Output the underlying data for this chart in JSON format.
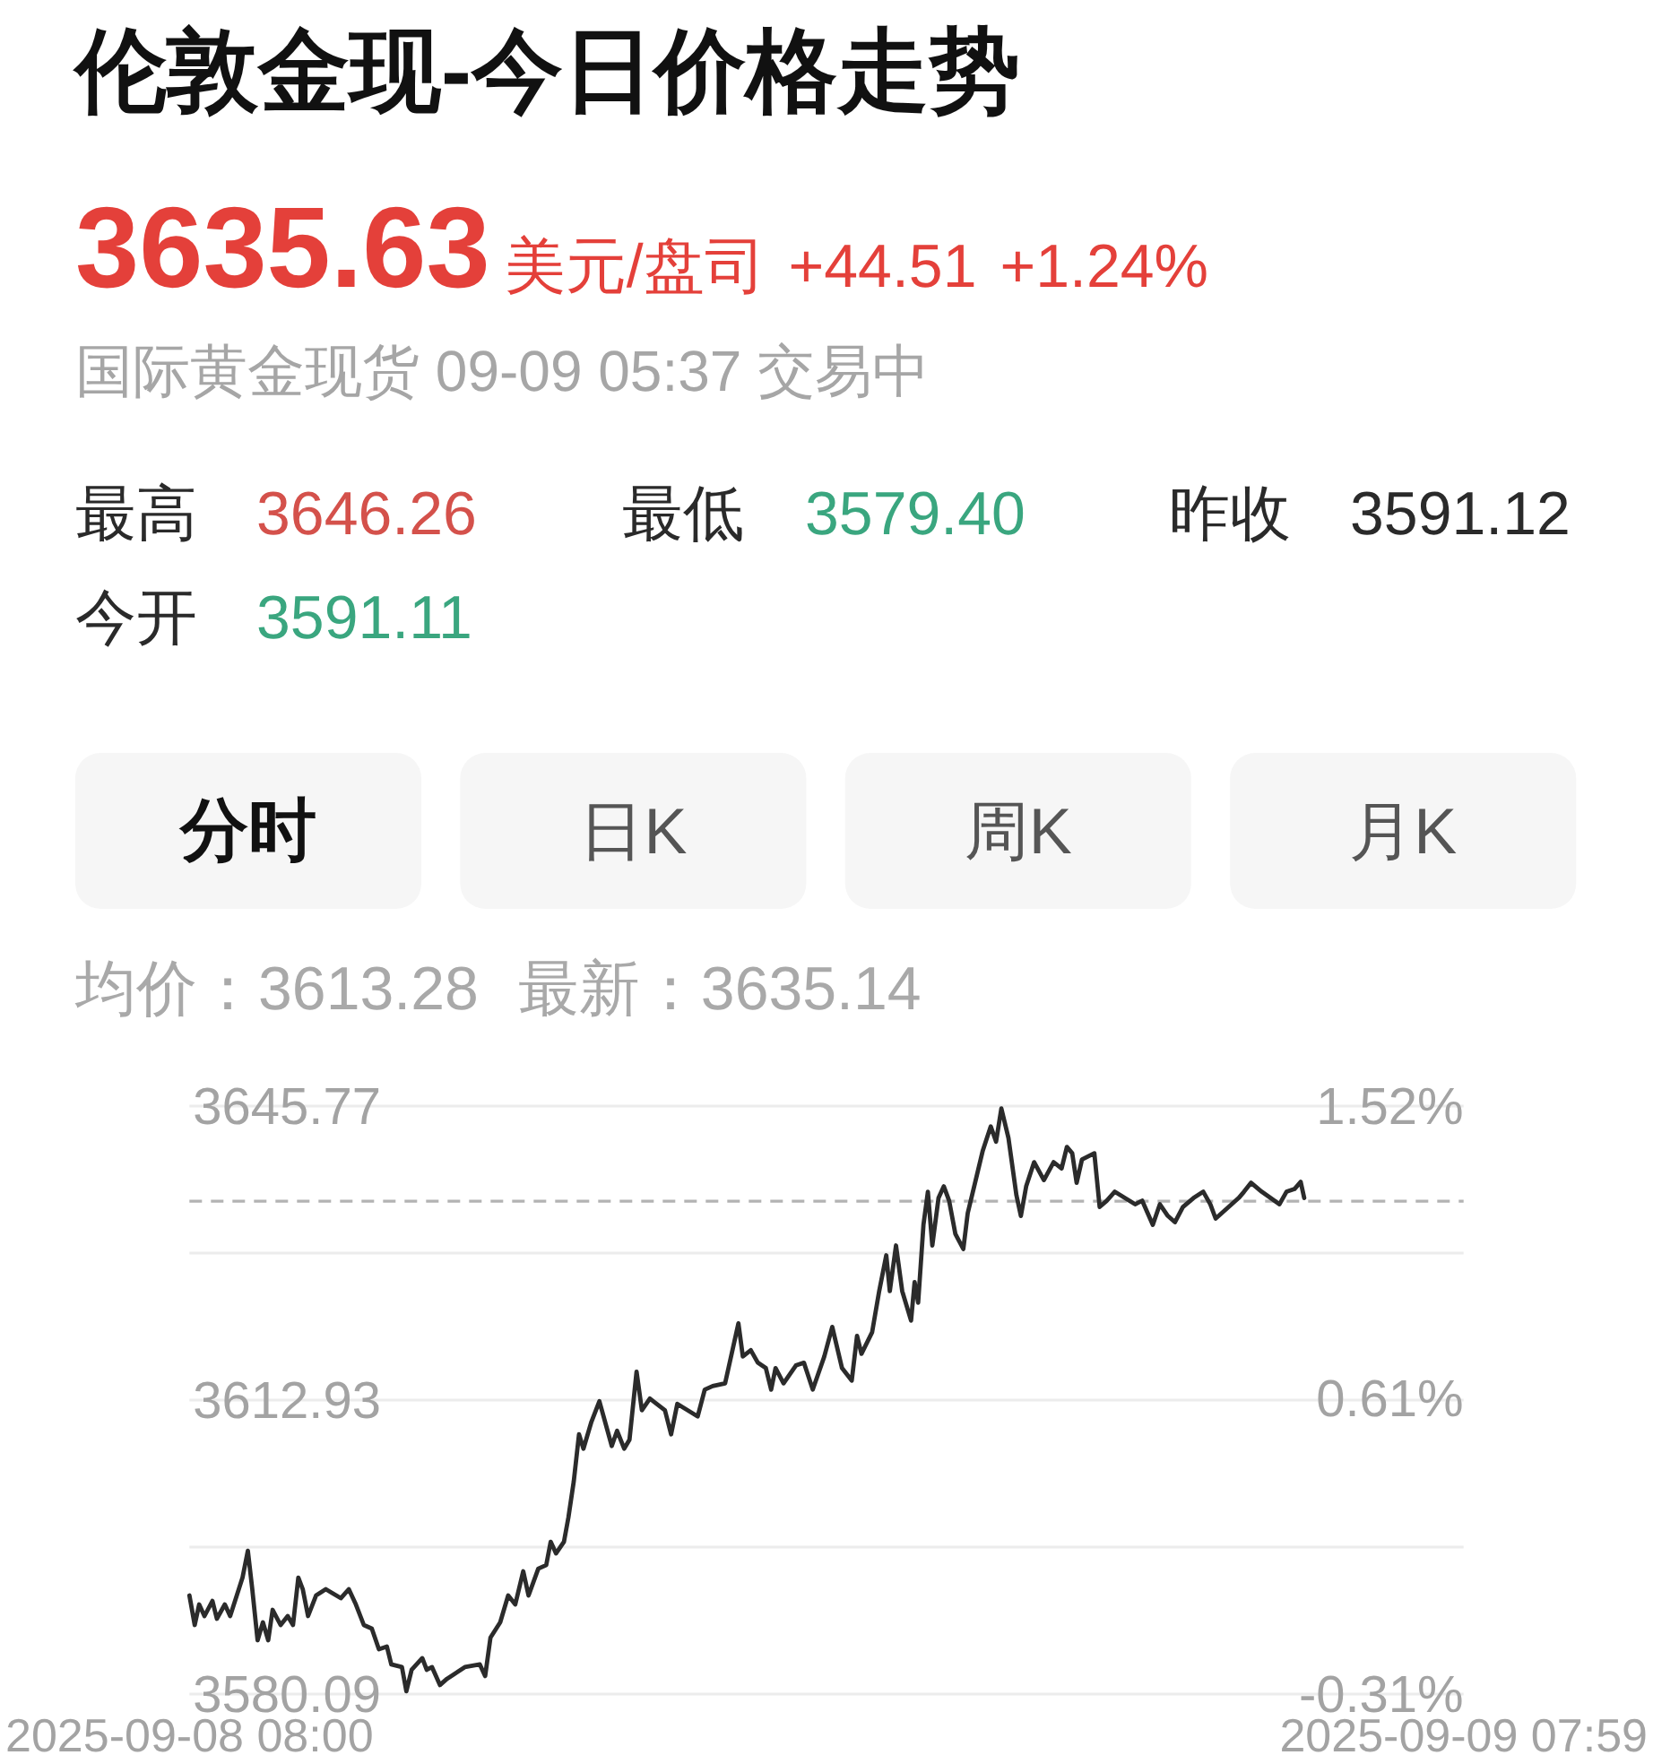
{
  "chart_data": {
    "type": "line",
    "title": "伦敦金现-今日价格走势",
    "annotations": [
      "3635.63",
      "美元/盘司",
      "+44.51",
      "+1.24%",
      "国际黄金现货 09-09 05:37 交易中",
      "最高",
      "3646.26",
      "最低",
      "3579.40",
      "昨收",
      "3591.12",
      "今开",
      "3591.11",
      "分时",
      "日K",
      "周K",
      "月K",
      "均价：3613.28",
      "最新：3635.14"
    ],
    "x": [
      "2025-09-08T08:00",
      "2025-09-08T08:06",
      "2025-09-08T08:11",
      "2025-09-08T08:17",
      "2025-09-08T08:26",
      "2025-09-08T08:31",
      "2025-09-08T08:40",
      "2025-09-08T08:46",
      "2025-09-08T09:00",
      "2025-09-08T09:06",
      "2025-09-08T09:11",
      "2025-09-08T09:17",
      "2025-09-08T09:23",
      "2025-09-08T09:29",
      "2025-09-08T09:34",
      "2025-09-08T09:43",
      "2025-09-08T09:51",
      "2025-09-08T09:57",
      "2025-09-08T10:03",
      "2025-09-08T10:08",
      "2025-09-08T10:14",
      "2025-09-08T10:23",
      "2025-09-08T10:34",
      "2025-09-08T10:51",
      "2025-09-08T11:00",
      "2025-09-08T11:08",
      "2025-09-08T11:17",
      "2025-09-08T11:26",
      "2025-09-08T11:34",
      "2025-09-08T11:43",
      "2025-09-08T11:48",
      "2025-09-08T12:00",
      "2025-09-08T12:05",
      "2025-09-08T12:11",
      "2025-09-08T12:23",
      "2025-09-08T12:28",
      "2025-09-08T12:34",
      "2025-09-08T12:43",
      "2025-09-08T12:51",
      "2025-09-08T13:11",
      "2025-09-08T13:28",
      "2025-09-08T13:34",
      "2025-09-08T13:40",
      "2025-09-08T13:51",
      "2025-09-08T14:00",
      "2025-09-08T14:08",
      "2025-09-08T14:17",
      "2025-09-08T14:23",
      "2025-09-08T14:34",
      "2025-09-08T14:43",
      "2025-09-08T14:48",
      "2025-09-08T14:54",
      "2025-09-08T15:03",
      "2025-09-08T15:08",
      "2025-09-08T15:14",
      "2025-09-08T15:20",
      "2025-09-08T15:25",
      "2025-09-08T15:34",
      "2025-09-08T15:43",
      "2025-09-08T15:57",
      "2025-09-08T16:03",
      "2025-09-08T16:11",
      "2025-09-08T16:17",
      "2025-09-08T16:25",
      "2025-09-08T16:31",
      "2025-09-08T16:40",
      "2025-09-08T16:57",
      "2025-09-08T17:04",
      "2025-09-08T17:11",
      "2025-09-08T17:34",
      "2025-09-08T17:42",
      "2025-09-08T17:51",
      "2025-09-08T18:05",
      "2025-09-08T18:20",
      "2025-09-08T18:25",
      "2025-09-08T18:34",
      "2025-09-08T18:42",
      "2025-09-08T18:51",
      "2025-09-08T18:57",
      "2025-09-08T19:02",
      "2025-09-08T19:11",
      "2025-09-08T19:25",
      "2025-09-08T19:34",
      "2025-09-08T19:44",
      "2025-09-08T19:57",
      "2025-09-08T20:06",
      "2025-09-08T20:17",
      "2025-09-08T20:28",
      "2025-09-08T20:34",
      "2025-09-08T20:39",
      "2025-09-08T20:51",
      "2025-09-08T20:59",
      "2025-09-08T21:07",
      "2025-09-08T21:11",
      "2025-09-08T21:18",
      "2025-09-08T21:25",
      "2025-09-08T21:35",
      "2025-09-08T21:39",
      "2025-09-08T21:43",
      "2025-09-08T21:49",
      "2025-09-08T21:54",
      "2025-09-08T21:59",
      "2025-09-08T22:06",
      "2025-09-08T22:12",
      "2025-09-08T22:18",
      "2025-09-08T22:25",
      "2025-09-08T22:34",
      "2025-09-08T22:39",
      "2025-09-08T22:48",
      "2025-09-08T22:56",
      "2025-09-08T23:05",
      "2025-09-08T23:11",
      "2025-09-08T23:17",
      "2025-09-08T23:25",
      "2025-09-08T23:34",
      "2025-09-08T23:39",
      "2025-09-08T23:45",
      "2025-09-08T23:54",
      "2025-09-09T00:05",
      "2025-09-09T00:16",
      "2025-09-09T00:25",
      "2025-09-09T00:31",
      "2025-09-09T00:37",
      "2025-09-09T00:42",
      "2025-09-09T00:48",
      "2025-09-09T01:02",
      "2025-09-09T01:08",
      "2025-09-09T01:16",
      "2025-09-09T01:25",
      "2025-09-09T01:48",
      "2025-09-09T01:56",
      "2025-09-09T02:08",
      "2025-09-09T02:16",
      "2025-09-09T02:25",
      "2025-09-09T02:33",
      "2025-09-09T02:42",
      "2025-09-09T02:54",
      "2025-09-09T03:05",
      "2025-09-09T03:13",
      "2025-09-09T03:19",
      "2025-09-09T03:45",
      "2025-09-09T03:51",
      "2025-09-09T03:59",
      "2025-09-09T04:11",
      "2025-09-09T04:31",
      "2025-09-09T04:39",
      "2025-09-09T04:48",
      "2025-09-09T04:55",
      "2025-09-09T04:59"
    ],
    "series": [
      {
        "color": "#2b2b2b",
        "values": [
          3591.1,
          3587.8,
          3590.1,
          3588.8,
          3590.5,
          3588.5,
          3590.1,
          3588.8,
          3593.1,
          3596.1,
          3591.8,
          3586.1,
          3588.1,
          3586.1,
          3589.5,
          3587.8,
          3588.8,
          3587.8,
          3593.1,
          3591.8,
          3588.8,
          3591.1,
          3591.8,
          3590.8,
          3591.8,
          3590.1,
          3587.8,
          3587.4,
          3585.1,
          3585.4,
          3583.4,
          3583.1,
          3580.4,
          3582.8,
          3584.1,
          3582.8,
          3583.1,
          3581.1,
          3581.8,
          3583.1,
          3583.4,
          3582.1,
          3586.4,
          3588.1,
          3591.1,
          3590.1,
          3593.8,
          3591.1,
          3594.1,
          3594.5,
          3597.1,
          3595.8,
          3597.1,
          3599.8,
          3603.8,
          3609.1,
          3607.5,
          3610.5,
          3612.8,
          3607.8,
          3609.5,
          3607.5,
          3608.5,
          3616.1,
          3611.8,
          3613.1,
          3611.8,
          3609.1,
          3612.5,
          3611.1,
          3614.1,
          3614.5,
          3614.8,
          3621.5,
          3617.8,
          3618.5,
          3617.1,
          3616.5,
          3614.1,
          3616.5,
          3614.8,
          3616.8,
          3617.1,
          3614.1,
          3617.8,
          3621.1,
          3616.5,
          3615.1,
          3620.1,
          3618.1,
          3620.5,
          3625.1,
          3629.1,
          3625.1,
          3630.2,
          3625.1,
          3621.8,
          3626.1,
          3623.8,
          3632.5,
          3636.2,
          3630.2,
          3635.5,
          3636.8,
          3635.2,
          3631.5,
          3629.8,
          3633.8,
          3637.5,
          3640.8,
          3643.5,
          3641.8,
          3645.5,
          3642.2,
          3635.8,
          3633.5,
          3636.8,
          3639.5,
          3637.5,
          3639.5,
          3638.8,
          3641.2,
          3640.5,
          3637.2,
          3639.8,
          3640.5,
          3634.5,
          3635.2,
          3636.2,
          3634.8,
          3635.2,
          3632.5,
          3634.8,
          3633.5,
          3632.8,
          3634.5,
          3635.5,
          3636.2,
          3634.8,
          3633.2,
          3635.5,
          3636.2,
          3637.2,
          3636.2,
          3634.8,
          3636.2,
          3636.5,
          3637.3,
          3635.5
        ]
      }
    ],
    "xlim": [
      "2025-09-08T08:00",
      "2025-09-09T07:59"
    ],
    "xticks": [
      {
        "value": "2025-09-08T08:00",
        "label": "2025-09-08 08:00"
      },
      {
        "value": "2025-09-09T07:59",
        "label": "2025-09-09 07:59"
      }
    ],
    "ylim": [
      3580.09,
      3645.77
    ],
    "yticks": [
      3580.09,
      {
        "value": 3596.51,
        "label": null
      },
      3612.93,
      {
        "value": 3629.35,
        "label": null
      },
      3645.77
    ],
    "y2lim": [
      -0.31,
      1.52
    ],
    "y2ticks": [
      {
        "value": -0.31,
        "label": "-0.31%"
      },
      {
        "value": 0.61,
        "label": "0.61%"
      },
      {
        "value": 1.52,
        "label": "1.52%"
      }
    ],
    "ref_lines": [
      {
        "axis": "y",
        "value": 3635.14,
        "line_style": "dashed",
        "color": "#b3b3b3"
      }
    ],
    "grid": "y"
  }
}
